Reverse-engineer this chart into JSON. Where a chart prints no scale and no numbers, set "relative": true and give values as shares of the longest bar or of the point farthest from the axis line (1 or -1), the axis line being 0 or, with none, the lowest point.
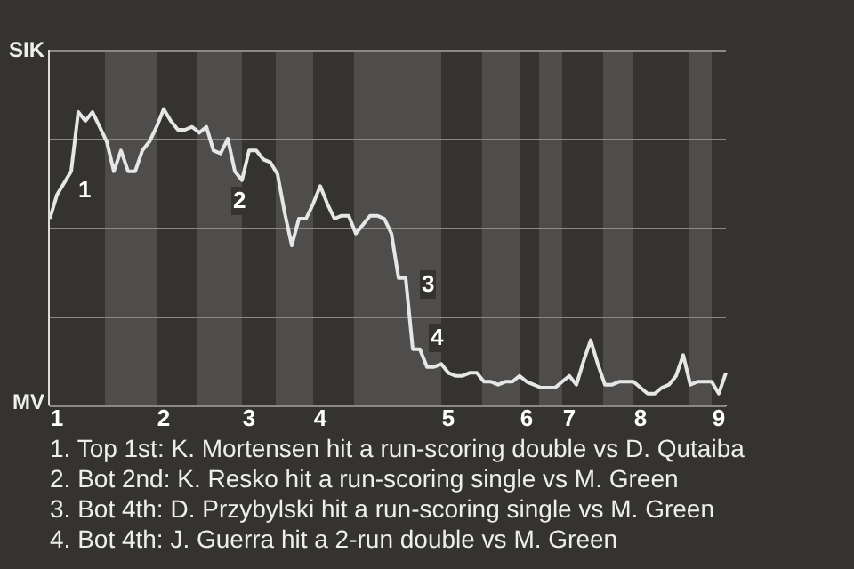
{
  "chart_data": {
    "type": "line",
    "relative": true,
    "categories": [
      null,
      "1",
      null,
      null,
      null,
      null,
      null,
      null,
      null,
      null,
      null,
      null,
      null,
      null,
      null,
      null,
      "2",
      null,
      null,
      null,
      null,
      null,
      null,
      null,
      null,
      null,
      null,
      null,
      "3",
      null,
      null,
      null,
      null,
      null,
      null,
      null,
      null,
      null,
      "4",
      null,
      null,
      null,
      null,
      null,
      null,
      null,
      null,
      null,
      null,
      null,
      null,
      null,
      null,
      null,
      null,
      null,
      "5",
      null,
      null,
      null,
      null,
      null,
      null,
      null,
      null,
      null,
      null,
      "6",
      null,
      null,
      null,
      null,
      null,
      "7",
      null,
      null,
      null,
      null,
      null,
      null,
      null,
      null,
      null,
      "8",
      null,
      null,
      null,
      null,
      null,
      null,
      null,
      null,
      null,
      null,
      "9",
      null
    ],
    "series": [
      {
        "color": "#e6e6e6",
        "values": [
          0.63,
          0.71,
          0.75,
          0.79,
          0.99,
          0.96,
          0.99,
          0.94,
          0.89,
          0.79,
          0.86,
          0.79,
          0.79,
          0.86,
          0.89,
          0.94,
          1,
          0.96,
          0.93,
          0.93,
          0.94,
          0.92,
          0.94,
          0.86,
          0.85,
          0.9,
          0.79,
          0.76,
          0.86,
          0.86,
          0.83,
          0.82,
          0.78,
          0.65,
          0.54,
          0.63,
          0.63,
          0.68,
          0.74,
          0.68,
          0.63,
          0.64,
          0.64,
          0.58,
          0.61,
          0.64,
          0.64,
          0.63,
          0.58,
          0.43,
          0.43,
          0.19,
          0.19,
          0.13,
          0.13,
          0.14,
          0.11,
          0.1,
          0.1,
          0.11,
          0.11,
          0.08,
          0.08,
          0.07,
          0.08,
          0.08,
          0.1,
          0.08,
          0.07,
          0.06,
          0.06,
          0.06,
          0.08,
          0.1,
          0.07,
          0.15,
          0.22,
          0.14,
          0.07,
          0.07,
          0.08,
          0.08,
          0.08,
          0.06,
          0.04,
          0.04,
          0.06,
          0.07,
          0.1,
          0.17,
          0.07,
          0.08,
          0.08,
          0.08,
          0.04,
          0.11
        ]
      }
    ],
    "grid": "y",
    "marker": "none",
    "line_style": "solid",
    "annotations": [
      "SIK",
      "MV",
      "1",
      "2",
      "3",
      "4",
      "1. Top 1st: K. Mortensen hit a run-scoring double vs D. Qutaiba",
      "2. Bot 2nd: K. Resko hit a run-scoring single vs M. Green",
      "3. Bot 4th: D. Przybylski hit a run-scoring single vs M. Green",
      "4. Bot 4th: J. Guerra hit a 2-run double vs M. Green"
    ]
  }
}
